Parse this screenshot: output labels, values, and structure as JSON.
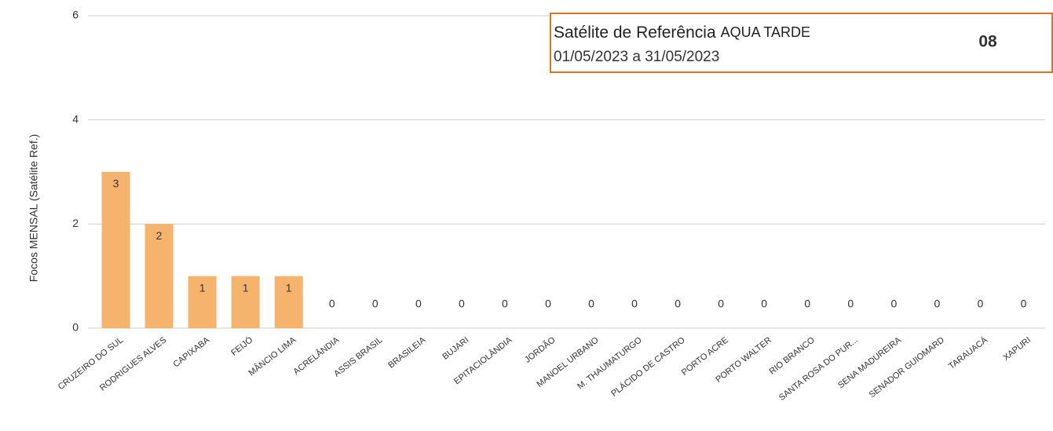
{
  "chart_data": {
    "type": "bar",
    "y_label": "Focos MENSAL (Satélite Ref.)",
    "categories": [
      "CRUZEIRO DO SUL",
      "RODRIGUES ALVES",
      "CAPIXABA",
      "FEIJÓ",
      "MÂNCIO LIMA",
      "ACRELÂNDIA",
      "ASSIS BRASIL",
      "BRASILEIA",
      "BUJARI",
      "EPITACIOLÂNDIA",
      "JORDÃO",
      "MANOEL URBANO",
      "M. THAUMATURGO",
      "PLÁCIDO DE CASTRO",
      "PORTO ACRE",
      "PORTO WALTER",
      "RIO BRANCO",
      "SANTA ROSA DO PUR...",
      "SENA MADUREIRA",
      "SENADOR GUIOMARD",
      "TARAUACÁ",
      "XAPURI"
    ],
    "values": [
      3,
      2,
      1,
      1,
      1,
      0,
      0,
      0,
      0,
      0,
      0,
      0,
      0,
      0,
      0,
      0,
      0,
      0,
      0,
      0,
      0,
      0
    ],
    "color": "#f5b36d",
    "ylim": [
      0,
      6
    ],
    "yticks": [
      0,
      2,
      4,
      6
    ],
    "grid": true,
    "annotation": {
      "label": "Satélite de Referência",
      "satellite": "AQUA TARDE",
      "period": "01/05/2023 a 31/05/2023",
      "count": "08"
    }
  }
}
